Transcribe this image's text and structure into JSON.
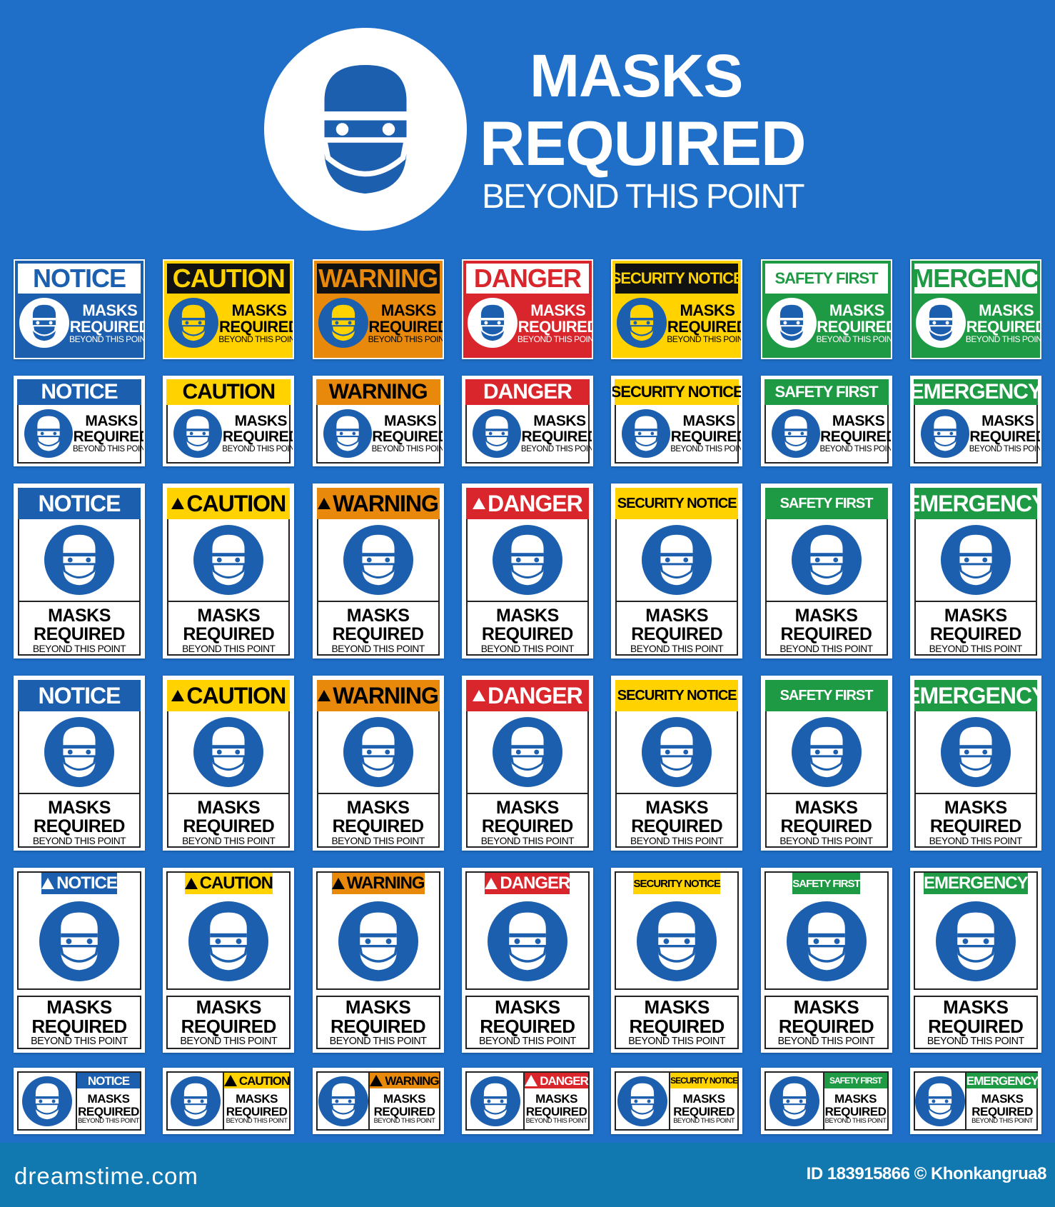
{
  "hero": {
    "title_line1": "MASKS",
    "title_line2": "REQUIRED",
    "subtitle": "BEYOND THIS POINT",
    "icon": "face-mask-icon"
  },
  "sign_text": {
    "masks": "MASKS",
    "required": "REQUIRED",
    "beyond": "BEYOND THIS POINT"
  },
  "columns": [
    {
      "key": "notice",
      "bg": "#1c5fae",
      "fg": "#ffffff",
      "r1_head_bg": "#ffffff",
      "r1_head_fg": "#1c5fae",
      "r1_icon_bg": "#ffffff",
      "r1_icon_fg": "#1c5fae"
    },
    {
      "key": "caution",
      "bg": "#ffd200",
      "fg": "#000000",
      "r1_head_bg": "#111111",
      "r1_head_fg": "#ffd200",
      "r1_icon_bg": "#1c5fae",
      "r1_icon_fg": "#ffd200"
    },
    {
      "key": "warning",
      "bg": "#e8890c",
      "fg": "#000000",
      "r1_head_bg": "#111111",
      "r1_head_fg": "#e8890c",
      "r1_icon_bg": "#1c5fae",
      "r1_icon_fg": "#ffd200"
    },
    {
      "key": "danger",
      "bg": "#d9262c",
      "fg": "#ffffff",
      "r1_head_bg": "#ffffff",
      "r1_head_fg": "#d9262c",
      "r1_icon_bg": "#ffffff",
      "r1_icon_fg": "#1c5fae"
    },
    {
      "key": "security",
      "bg": "#ffd200",
      "fg": "#000000",
      "r1_head_bg": "#111111",
      "r1_head_fg": "#ffd200",
      "r1_icon_bg": "#1c5fae",
      "r1_icon_fg": "#ffd200"
    },
    {
      "key": "safety",
      "bg": "#1f9a44",
      "fg": "#ffffff",
      "r1_head_bg": "#ffffff",
      "r1_head_fg": "#1f9a44",
      "r1_icon_bg": "#ffffff",
      "r1_icon_fg": "#1c5fae"
    },
    {
      "key": "emergency",
      "bg": "#1f9a44",
      "fg": "#ffffff",
      "r1_head_bg": "#ffffff",
      "r1_head_fg": "#1f9a44",
      "r1_icon_bg": "#ffffff",
      "r1_icon_fg": "#1c5fae"
    }
  ],
  "rows": [
    {
      "style": "landscape-color",
      "labels": [
        "NOTICE",
        "CAUTION",
        "WARNING",
        "DANGER",
        "SECURITY NOTICE",
        "SAFETY FIRST",
        "EMERGENCY"
      ],
      "alert": [
        false,
        false,
        false,
        false,
        false,
        false,
        false
      ]
    },
    {
      "style": "landscape-white",
      "labels": [
        "NOTICE",
        "CAUTION",
        "WARNING",
        "DANGER",
        "SECURITY NOTICE",
        "SAFETY FIRST",
        "EMERGENCY"
      ],
      "alert": [
        false,
        false,
        false,
        false,
        false,
        false,
        false
      ]
    },
    {
      "style": "portrait",
      "labels": [
        "NOTICE",
        "CAUTION",
        "WARNING",
        "DANGER",
        "SECURITY NOTICE",
        "SAFETY FIRST",
        "EMERGENCY"
      ],
      "alert": [
        false,
        true,
        true,
        true,
        false,
        false,
        false
      ]
    },
    {
      "style": "portrait",
      "labels": [
        "NOTICE",
        "CAUTION",
        "WARNING",
        "DANGER",
        "SECURITY NOTICE",
        "SAFETY FIRST",
        "EMERGENCY"
      ],
      "alert": [
        false,
        true,
        true,
        true,
        false,
        false,
        false
      ]
    },
    {
      "style": "portrait-boxed",
      "labels": [
        "NOTICE",
        "CAUTION",
        "WARNING",
        "DANGER",
        "SECURITY NOTICE",
        "SAFETY FIRST",
        "EMERGENCY"
      ],
      "alert": [
        true,
        true,
        true,
        true,
        false,
        false,
        false
      ]
    },
    {
      "style": "landscape-icon-left",
      "labels": [
        "NOTICE",
        "CAUTION",
        "WARNING",
        "DANGER",
        "SECURITY NOTICE",
        "SAFETY FIRST",
        "EMERGENCY"
      ],
      "alert": [
        false,
        true,
        true,
        true,
        false,
        false,
        false
      ]
    }
  ],
  "footer": {
    "brand": "dreamstime.com",
    "credit": "ID 183915866 © Khonkangrua8",
    "bg": "#1178b0"
  },
  "background": "#1f6fc8"
}
